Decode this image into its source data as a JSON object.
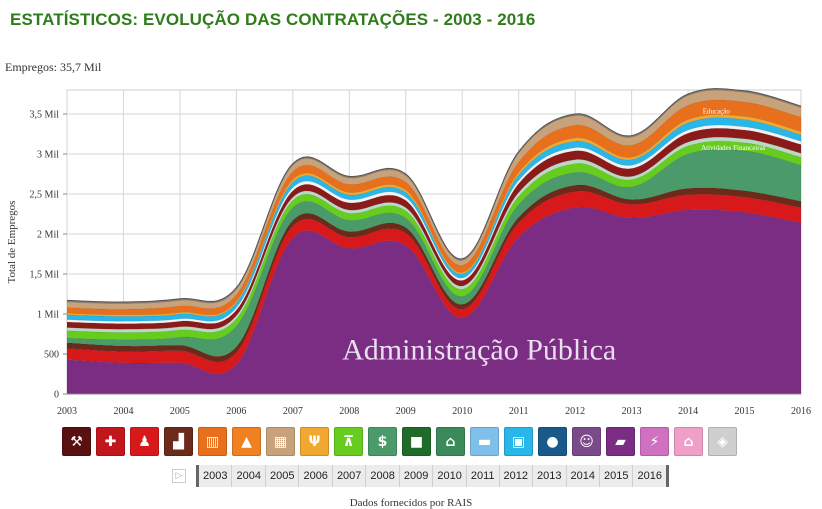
{
  "page": {
    "title": "ESTATÍSTICOS: EVOLUÇÃO DAS CONTRATAÇÕES - 2003 - 2016",
    "subtitle": "Empregos: 35,7 Mil",
    "source": "Dados fornecidos por RAIS"
  },
  "chart_data": {
    "type": "area",
    "stacked": true,
    "ylabel": "Total de Empregos",
    "x": [
      2003,
      2004,
      2005,
      2006,
      2007,
      2008,
      2009,
      2010,
      2011,
      2012,
      2013,
      2014,
      2015,
      2016
    ],
    "ylim": [
      0,
      3800
    ],
    "y_ticks": [
      0,
      500,
      1000,
      1500,
      2000,
      2500,
      3000,
      3500
    ],
    "y_tick_labels": [
      "0",
      "500",
      "1 Mil",
      "1,5 Mil",
      "2 Mil",
      "2,5 Mil",
      "3 Mil",
      "3,5 Mil"
    ],
    "grid": true,
    "series": [
      {
        "name": "Administração Pública",
        "color": "#7b2d83",
        "values": [
          430,
          390,
          390,
          370,
          1950,
          1820,
          1860,
          950,
          1960,
          2330,
          2200,
          2300,
          2270,
          2140
        ]
      },
      {
        "name": "",
        "color": "#d7191c",
        "values": [
          140,
          140,
          150,
          150,
          150,
          140,
          150,
          110,
          180,
          200,
          170,
          190,
          190,
          190
        ]
      },
      {
        "name": "",
        "color": "#6b2a1a",
        "values": [
          70,
          70,
          70,
          70,
          70,
          70,
          70,
          60,
          70,
          80,
          60,
          80,
          80,
          80
        ]
      },
      {
        "name": "",
        "color": "#4a9a6a",
        "values": [
          60,
          80,
          100,
          260,
          160,
          140,
          120,
          100,
          160,
          160,
          160,
          430,
          500,
          450
        ]
      },
      {
        "name": "Atividades Financeiras",
        "color": "#66cc1e",
        "values": [
          90,
          90,
          90,
          90,
          90,
          90,
          90,
          90,
          100,
          110,
          90,
          100,
          100,
          100
        ]
      },
      {
        "name": "",
        "color": "#b8d9c4",
        "values": [
          40,
          40,
          40,
          40,
          40,
          40,
          40,
          40,
          50,
          50,
          40,
          50,
          50,
          50
        ]
      },
      {
        "name": "",
        "color": "#8b1a1a",
        "values": [
          70,
          70,
          70,
          70,
          80,
          90,
          90,
          70,
          110,
          110,
          100,
          110,
          110,
          110
        ]
      },
      {
        "name": "",
        "color": "#f2f2f2",
        "values": [
          30,
          30,
          30,
          30,
          40,
          40,
          40,
          30,
          40,
          40,
          40,
          40,
          40,
          40
        ]
      },
      {
        "name": "",
        "color": "#29b6e8",
        "values": [
          60,
          60,
          60,
          60,
          70,
          60,
          60,
          50,
          70,
          80,
          70,
          90,
          90,
          80
        ]
      },
      {
        "name": "",
        "color": "#f0a830",
        "values": [
          20,
          20,
          20,
          20,
          30,
          30,
          30,
          20,
          30,
          40,
          30,
          40,
          40,
          40
        ]
      },
      {
        "name": "Educação",
        "color": "#e8701c",
        "values": [
          70,
          70,
          80,
          80,
          100,
          100,
          100,
          90,
          130,
          160,
          150,
          180,
          180,
          180
        ]
      },
      {
        "name": "",
        "color": "#c8a27a",
        "values": [
          70,
          70,
          70,
          70,
          80,
          80,
          80,
          60,
          110,
          120,
          100,
          120,
          120,
          120
        ]
      },
      {
        "name": "",
        "color": "#8c7b6a",
        "values": [
          20,
          20,
          20,
          20,
          20,
          20,
          20,
          20,
          20,
          20,
          20,
          20,
          20,
          20
        ]
      }
    ],
    "annotations": [
      {
        "text": "Administração Pública",
        "series": "Administração Pública"
      },
      {
        "text": "Atividades Financeiras",
        "series": "Atividades Financeiras"
      },
      {
        "text": "Educação",
        "series": "Educação"
      }
    ]
  },
  "sector_icons": [
    {
      "name": "mining-icon",
      "glyph": "⚒",
      "color": "#5a1010"
    },
    {
      "name": "health-icon",
      "glyph": "✚",
      "color": "#c0161c"
    },
    {
      "name": "social-services-icon",
      "glyph": "♟",
      "color": "#d7191c"
    },
    {
      "name": "industry-icon",
      "glyph": "▟",
      "color": "#6b2a1a"
    },
    {
      "name": "book-icon",
      "glyph": "▥",
      "color": "#e8701c"
    },
    {
      "name": "construction-cone-icon",
      "glyph": "▲",
      "color": "#f08020"
    },
    {
      "name": "services-icon",
      "glyph": "▦",
      "color": "#c8a27a"
    },
    {
      "name": "food-icon",
      "glyph": "Ψ",
      "color": "#f0a830"
    },
    {
      "name": "telecom-tower-icon",
      "glyph": "⊼",
      "color": "#66cc1e"
    },
    {
      "name": "finance-icon",
      "glyph": "$",
      "color": "#4a9a6a"
    },
    {
      "name": "agriculture-icon",
      "glyph": "■",
      "color": "#1f6b2a"
    },
    {
      "name": "public-building-icon",
      "glyph": "⌂",
      "color": "#3a8a5a"
    },
    {
      "name": "transport-truck-icon",
      "glyph": "▬",
      "color": "#7fc0ea"
    },
    {
      "name": "commerce-icon",
      "glyph": "▣",
      "color": "#29b6e8"
    },
    {
      "name": "water-drop-icon",
      "glyph": "●",
      "color": "#1a5a8a"
    },
    {
      "name": "arts-masks-icon",
      "glyph": "☺",
      "color": "#7b4a8a"
    },
    {
      "name": "lodging-icon",
      "glyph": "▰",
      "color": "#7b2d83"
    },
    {
      "name": "energy-icon",
      "glyph": "⚡",
      "color": "#d070c0"
    },
    {
      "name": "house-icon",
      "glyph": "⌂",
      "color": "#f0a0c8"
    },
    {
      "name": "other-box-icon",
      "glyph": "◈",
      "color": "#cfcfcf"
    }
  ],
  "timeline": {
    "play_icon": "▷",
    "years": [
      "2003",
      "2004",
      "2005",
      "2006",
      "2007",
      "2008",
      "2009",
      "2010",
      "2011",
      "2012",
      "2013",
      "2014",
      "2015",
      "2016"
    ]
  }
}
